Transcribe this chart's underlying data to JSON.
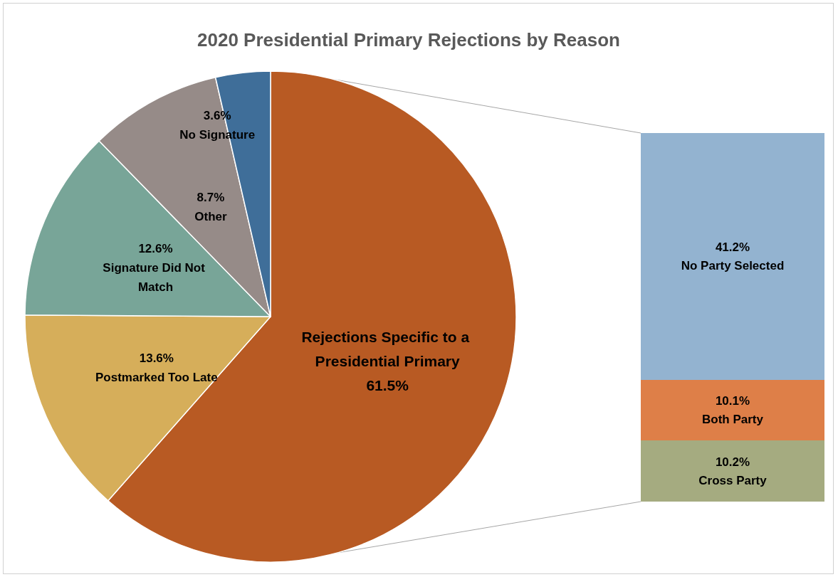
{
  "chart_data": [
    {
      "type": "pie",
      "title": "2020 Presidential Primary Rejections by Reason",
      "categories": [
        "Rejections Specific to a Presidential Primary",
        "Postmarked Too Late",
        "Signature Did Not Match",
        "Other",
        "No Signature"
      ],
      "values": [
        61.5,
        13.6,
        12.6,
        8.7,
        3.6
      ],
      "value_labels": [
        "61.5%",
        "13.6%",
        "12.6%",
        "8.7%",
        "3.6%"
      ],
      "colors": [
        "#b85a23",
        "#d6ae5a",
        "#78a598",
        "#968b88",
        "#3f6e99"
      ]
    },
    {
      "type": "bar",
      "stacked": true,
      "categories": [
        null
      ],
      "series": [
        {
          "name": "Cross Party",
          "color": "#a5ab80",
          "values": [
            10.2
          ],
          "value_labels": [
            "10.2%"
          ]
        },
        {
          "name": "Both Party",
          "color": "#de7f48",
          "values": [
            10.1
          ],
          "value_labels": [
            "10.1%"
          ]
        },
        {
          "name": "No Party Selected",
          "color": "#93b3d0",
          "values": [
            41.2
          ],
          "value_labels": [
            "41.2%"
          ]
        }
      ]
    }
  ]
}
